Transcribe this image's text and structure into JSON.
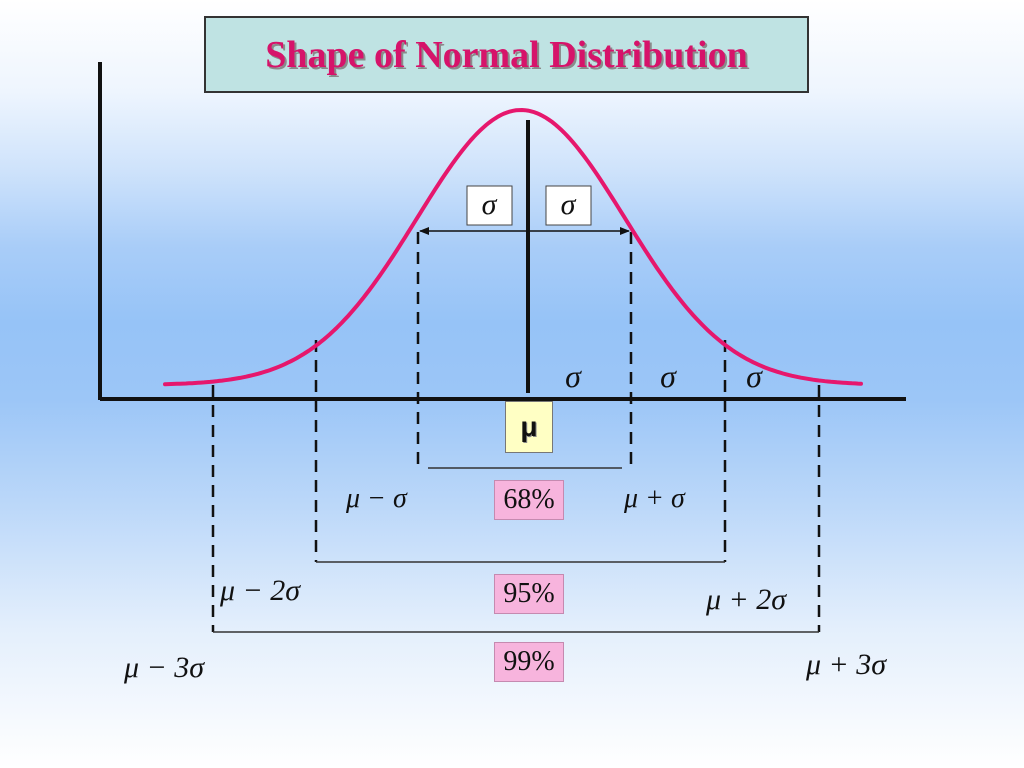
{
  "title": "Shape of Normal Distribution",
  "sigma_symbol": "σ",
  "mean_symbol": "μ",
  "center_label": "μ",
  "labels": {
    "mu_minus_sigma": "μ − σ",
    "mu_plus_sigma": "μ + σ",
    "mu_minus_2sigma": "μ − 2σ",
    "mu_plus_2sigma": "μ + 2σ",
    "mu_minus_3sigma": "μ − 3σ",
    "mu_plus_3sigma": "μ + 3σ"
  },
  "percentages": {
    "within_1sd": "68%",
    "within_2sd": "95%",
    "within_3sd": "99%"
  },
  "colors": {
    "curve": "#e6176d",
    "title_text": "#d6136a",
    "title_bg": "#bfe3e3",
    "percent_bg": "#f7b4dd",
    "mean_bg": "#ffffc4"
  }
}
